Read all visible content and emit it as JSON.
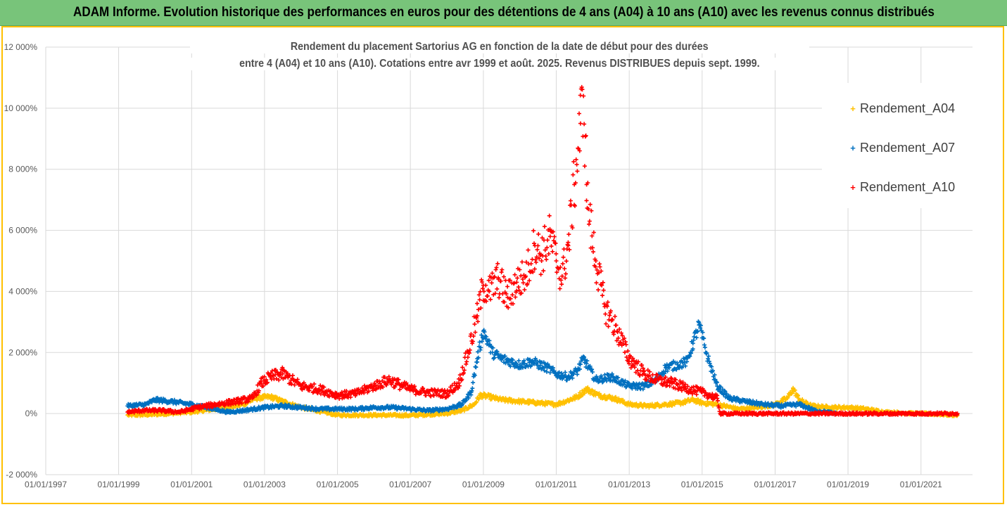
{
  "banner": {
    "title": "ADAM Informe. Evolution historique des performances en euros pour des détentions de 4 ans (A04) à 10 ans (A10) avec les revenus connus distribués"
  },
  "chart_data": {
    "type": "scatter",
    "title_line1": "Rendement du placement Sartorius AG en fonction de la date de début pour des durées",
    "title_line2": "entre 4 (A04) et 10 ans (A10). Cotations entre avr 1999 et août. 2025. Revenus DISTRIBUES depuis sept. 1999.",
    "xlabel": "",
    "ylabel": "",
    "x_range": [
      "1997-01-01",
      "2022-06-01"
    ],
    "ylim": [
      -2000,
      12000
    ],
    "y_ticks": [
      -2000,
      0,
      2000,
      4000,
      6000,
      8000,
      10000,
      12000
    ],
    "y_tick_labels": [
      "-2 000%",
      "0%",
      "2 000%",
      "4 000%",
      "6 000%",
      "8 000%",
      "10 000%",
      "12 000%"
    ],
    "x_ticks": [
      "1997-01-01",
      "1999-01-01",
      "2001-01-01",
      "2003-01-01",
      "2005-01-01",
      "2007-01-01",
      "2009-01-01",
      "2011-01-01",
      "2013-01-01",
      "2015-01-01",
      "2017-01-01",
      "2019-01-01",
      "2021-01-01"
    ],
    "x_tick_labels": [
      "01/01/1997",
      "01/01/1999",
      "01/01/2001",
      "01/01/2003",
      "01/01/2005",
      "01/01/2007",
      "01/01/2009",
      "01/01/2011",
      "01/01/2013",
      "01/01/2015",
      "01/01/2017",
      "01/01/2019",
      "01/01/2021"
    ],
    "grid": true,
    "legend_position": "right",
    "marker": "+",
    "series": [
      {
        "name": "Rendement_A04",
        "color": "#ffc000",
        "x": [
          "1999-04-01",
          "1999-10-01",
          "2000-06-01",
          "2001-01-01",
          "2001-09-01",
          "2002-06-01",
          "2002-10-01",
          "2003-03-01",
          "2003-07-01",
          "2004-01-01",
          "2004-06-01",
          "2005-01-01",
          "2006-01-01",
          "2007-01-01",
          "2008-01-01",
          "2008-06-01",
          "2008-10-01",
          "2008-12-01",
          "2009-03-01",
          "2009-07-01",
          "2010-01-01",
          "2010-07-01",
          "2011-01-01",
          "2011-04-01",
          "2011-08-01",
          "2011-11-01",
          "2012-03-01",
          "2012-08-01",
          "2013-01-01",
          "2013-07-01",
          "2014-01-01",
          "2014-06-01",
          "2014-10-01",
          "2015-01-01",
          "2015-06-01",
          "2016-01-01",
          "2016-07-01",
          "2017-01-01",
          "2017-05-01",
          "2017-07-01",
          "2017-09-01",
          "2018-01-01",
          "2018-07-01",
          "2019-01-01",
          "2019-07-01",
          "2020-01-01",
          "2020-07-01",
          "2021-01-01",
          "2021-07-01",
          "2022-01-01"
        ],
        "y": [
          -50,
          -40,
          0,
          50,
          150,
          300,
          500,
          550,
          400,
          200,
          100,
          -50,
          -50,
          -60,
          0,
          100,
          300,
          600,
          550,
          450,
          400,
          350,
          300,
          400,
          550,
          800,
          600,
          500,
          300,
          250,
          300,
          350,
          450,
          350,
          300,
          150,
          200,
          300,
          500,
          800,
          450,
          250,
          200,
          200,
          150,
          50,
          20,
          0,
          -20,
          -50
        ]
      },
      {
        "name": "Rendement_A07",
        "color": "#0070c0",
        "x": [
          "1999-04-01",
          "1999-10-01",
          "2000-01-01",
          "2000-06-01",
          "2001-01-01",
          "2001-06-01",
          "2002-01-01",
          "2002-06-01",
          "2003-01-01",
          "2003-07-01",
          "2004-01-01",
          "2004-07-01",
          "2005-01-01",
          "2005-07-01",
          "2006-01-01",
          "2006-07-01",
          "2007-01-01",
          "2007-07-01",
          "2008-01-01",
          "2008-06-01",
          "2008-09-01",
          "2008-11-01",
          "2009-01-01",
          "2009-04-01",
          "2009-07-01",
          "2010-01-01",
          "2010-05-01",
          "2010-10-01",
          "2011-01-01",
          "2011-05-01",
          "2011-08-01",
          "2011-10-01",
          "2012-02-01",
          "2012-07-01",
          "2013-01-01",
          "2013-06-01",
          "2013-10-01",
          "2014-01-01",
          "2014-05-01",
          "2014-08-01",
          "2014-10-01",
          "2014-12-01",
          "2015-03-01",
          "2015-06-01",
          "2015-10-01",
          "2016-03-01",
          "2016-09-01",
          "2017-03-01",
          "2017-09-01",
          "2018-02-01",
          "2018-06-01",
          "2018-09-01"
        ],
        "y": [
          250,
          300,
          450,
          400,
          300,
          200,
          50,
          100,
          200,
          250,
          200,
          150,
          150,
          150,
          200,
          200,
          150,
          100,
          150,
          300,
          700,
          1800,
          2700,
          2000,
          1800,
          1600,
          1700,
          1500,
          1300,
          1200,
          1400,
          1800,
          1100,
          1200,
          900,
          900,
          1100,
          1500,
          1600,
          1700,
          2300,
          2900,
          1800,
          900,
          500,
          400,
          300,
          250,
          300,
          100,
          50,
          0
        ]
      },
      {
        "name": "Rendement_A10",
        "color": "#ff0000",
        "x": [
          "1999-04-01",
          "1999-09-01",
          "2000-03-01",
          "2000-09-01",
          "2001-03-01",
          "2001-09-01",
          "2002-04-01",
          "2002-09-01",
          "2002-12-01",
          "2003-03-01",
          "2003-07-01",
          "2004-01-01",
          "2004-07-01",
          "2005-01-01",
          "2005-07-01",
          "2006-01-01",
          "2006-06-01",
          "2007-01-01",
          "2007-06-01",
          "2008-01-01",
          "2008-05-01",
          "2008-08-01",
          "2008-11-01",
          "2009-01-01",
          "2009-03-01",
          "2009-06-01",
          "2009-09-01",
          "2009-12-01",
          "2010-03-01",
          "2010-06-01",
          "2010-08-01",
          "2010-11-01",
          "2011-01-01",
          "2011-03-01",
          "2011-05-01",
          "2011-07-01",
          "2011-09-01",
          "2011-10-01",
          "2011-11-01",
          "2011-12-01",
          "2012-02-01",
          "2012-05-01",
          "2012-09-01",
          "2013-01-01",
          "2013-06-01",
          "2013-10-01",
          "2014-03-01",
          "2014-09-01",
          "2015-01-01",
          "2015-06-01",
          "2015-07-01",
          "2016-06-01",
          "2017-06-01",
          "2018-06-01",
          "2019-06-01",
          "2020-06-01",
          "2021-06-01",
          "2022-01-01"
        ],
        "y": [
          50,
          100,
          100,
          50,
          200,
          300,
          400,
          500,
          1000,
          1200,
          1300,
          900,
          800,
          600,
          650,
          900,
          1100,
          800,
          700,
          650,
          1000,
          2000,
          3200,
          4200,
          4000,
          4400,
          3800,
          4300,
          4500,
          5500,
          5200,
          5800,
          5000,
          4500,
          5500,
          7500,
          9500,
          10400,
          7500,
          6300,
          5000,
          3500,
          2700,
          1800,
          1300,
          1100,
          1000,
          800,
          700,
          500,
          0,
          0,
          0,
          0,
          0,
          0,
          0,
          0
        ]
      }
    ]
  }
}
